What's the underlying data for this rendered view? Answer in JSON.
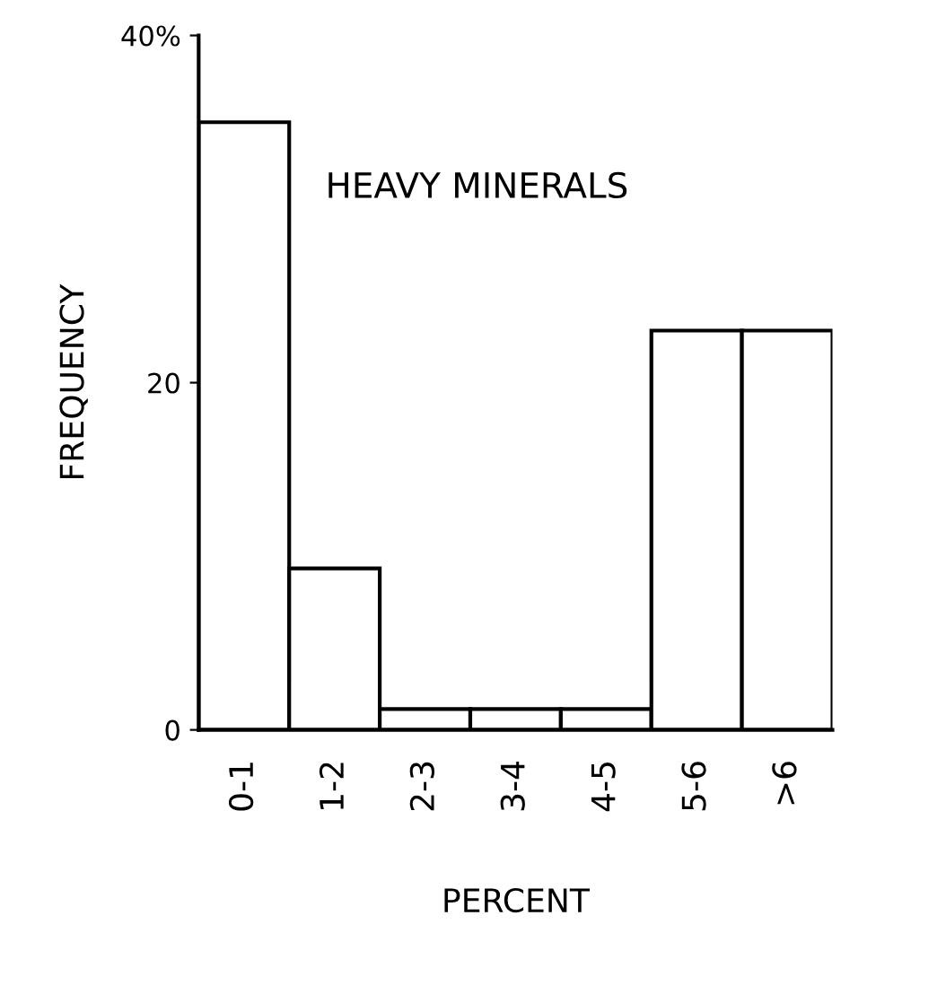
{
  "chart_data": {
    "type": "bar",
    "title": "HEAVY MINERALS",
    "xlabel": "PERCENT",
    "ylabel": "FREQUENCY",
    "categories": [
      "0-1",
      "1-2",
      "2-3",
      "3-4",
      "4-5",
      "5-6",
      ">6"
    ],
    "values": [
      35,
      9.3,
      1.2,
      1.2,
      1.2,
      23,
      23
    ],
    "color": "#ffffff",
    "ylim": [
      0,
      40
    ],
    "yticks": [
      0,
      20,
      {
        "value": 40,
        "label": "40%"
      }
    ],
    "grid": false
  }
}
